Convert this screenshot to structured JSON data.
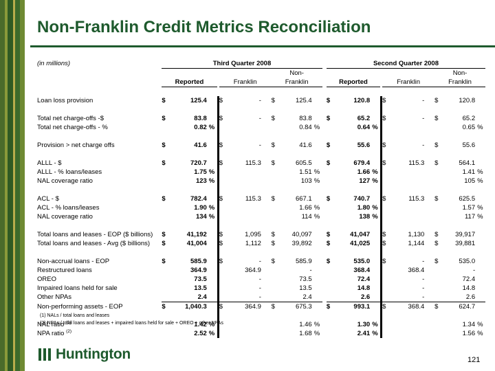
{
  "title": "Non-Franklin Credit Metrics Reconciliation",
  "units_note": "(in millions)",
  "periods": [
    "Third Quarter 2008",
    "Second Quarter 2008"
  ],
  "subheaders": [
    "Reported",
    "Franklin",
    "Non-\nFranklin"
  ],
  "rows": [
    {
      "label": "Loan loss provision",
      "cells": [
        [
          "$",
          "125.4",
          ""
        ],
        [
          "$",
          "-",
          ""
        ],
        [
          "$",
          "125.4",
          ""
        ],
        [
          "$",
          "120.8",
          ""
        ],
        [
          "$",
          "-",
          ""
        ],
        [
          "$",
          "120.8",
          ""
        ]
      ],
      "gap_before": false
    },
    {
      "label": "Total net charge-offs -$",
      "cells": [
        [
          "$",
          "83.8",
          ""
        ],
        [
          "$",
          "-",
          ""
        ],
        [
          "$",
          "83.8",
          ""
        ],
        [
          "$",
          "65.2",
          ""
        ],
        [
          "$",
          "-",
          ""
        ],
        [
          "$",
          "65.2",
          ""
        ]
      ],
      "gap_before": true
    },
    {
      "label": "Total net charge-offs - %",
      "cells": [
        [
          "",
          "0.82",
          "%"
        ],
        [
          "",
          "",
          ""
        ],
        [
          "",
          "0.84",
          "%"
        ],
        [
          "",
          "0.64",
          "%"
        ],
        [
          "",
          "",
          ""
        ],
        [
          "",
          "0.65",
          "%"
        ]
      ],
      "gap_before": false
    },
    {
      "label": "Provision > net charge offs",
      "cells": [
        [
          "$",
          "41.6",
          ""
        ],
        [
          "$",
          "-",
          ""
        ],
        [
          "$",
          "41.6",
          ""
        ],
        [
          "$",
          "55.6",
          ""
        ],
        [
          "$",
          "-",
          ""
        ],
        [
          "$",
          "55.6",
          ""
        ]
      ],
      "gap_before": true
    },
    {
      "label": "ALLL - $",
      "cells": [
        [
          "$",
          "720.7",
          ""
        ],
        [
          "$",
          "115.3",
          ""
        ],
        [
          "$",
          "605.5",
          ""
        ],
        [
          "$",
          "679.4",
          ""
        ],
        [
          "$",
          "115.3",
          ""
        ],
        [
          "$",
          "564.1",
          ""
        ]
      ],
      "gap_before": true
    },
    {
      "label": "ALLL - % loans/leases",
      "cells": [
        [
          "",
          "1.75",
          "%"
        ],
        [
          "",
          "",
          ""
        ],
        [
          "",
          "1.51",
          "%"
        ],
        [
          "",
          "1.66",
          "%"
        ],
        [
          "",
          "",
          ""
        ],
        [
          "",
          "1.41",
          "%"
        ]
      ],
      "gap_before": false
    },
    {
      "label": "NAL coverage ratio",
      "cells": [
        [
          "",
          "123",
          "%"
        ],
        [
          "",
          "",
          ""
        ],
        [
          "",
          "103",
          "%"
        ],
        [
          "",
          "127",
          "%"
        ],
        [
          "",
          "",
          ""
        ],
        [
          "",
          "105",
          "%"
        ]
      ],
      "gap_before": false
    },
    {
      "label": "ACL - $",
      "cells": [
        [
          "$",
          "782.4",
          ""
        ],
        [
          "$",
          "115.3",
          ""
        ],
        [
          "$",
          "667.1",
          ""
        ],
        [
          "$",
          "740.7",
          ""
        ],
        [
          "$",
          "115.3",
          ""
        ],
        [
          "$",
          "625.5",
          ""
        ]
      ],
      "gap_before": true
    },
    {
      "label": "ACL - % loans/leases",
      "cells": [
        [
          "",
          "1.90",
          "%"
        ],
        [
          "",
          "",
          ""
        ],
        [
          "",
          "1.66",
          "%"
        ],
        [
          "",
          "1.80",
          "%"
        ],
        [
          "",
          "",
          ""
        ],
        [
          "",
          "1.57",
          "%"
        ]
      ],
      "gap_before": false
    },
    {
      "label": "NAL coverage ratio",
      "cells": [
        [
          "",
          "134",
          "%"
        ],
        [
          "",
          "",
          ""
        ],
        [
          "",
          "114",
          "%"
        ],
        [
          "",
          "138",
          "%"
        ],
        [
          "",
          "",
          ""
        ],
        [
          "",
          "117",
          "%"
        ]
      ],
      "gap_before": false
    },
    {
      "label": "Total loans and leases - EOP ($ billions)",
      "cells": [
        [
          "$",
          "41,192",
          ""
        ],
        [
          "$",
          "1,095",
          ""
        ],
        [
          "$",
          "40,097",
          ""
        ],
        [
          "$",
          "41,047",
          ""
        ],
        [
          "$",
          "1,130",
          ""
        ],
        [
          "$",
          "39,917",
          ""
        ]
      ],
      "gap_before": true
    },
    {
      "label": "Total loans and leases - Avg ($ billions)",
      "cells": [
        [
          "$",
          "41,004",
          ""
        ],
        [
          "$",
          "1,112",
          ""
        ],
        [
          "$",
          "39,892",
          ""
        ],
        [
          "$",
          "41,025",
          ""
        ],
        [
          "$",
          "1,144",
          ""
        ],
        [
          "$",
          "39,881",
          ""
        ]
      ],
      "gap_before": false
    },
    {
      "label": "Non-accrual loans - EOP",
      "cells": [
        [
          "$",
          "585.9",
          ""
        ],
        [
          "$",
          "-",
          ""
        ],
        [
          "$",
          "585.9",
          ""
        ],
        [
          "$",
          "535.0",
          ""
        ],
        [
          "$",
          "-",
          ""
        ],
        [
          "$",
          "535.0",
          ""
        ]
      ],
      "gap_before": true
    },
    {
      "label": "Restructured loans",
      "cells": [
        [
          "",
          "364.9",
          ""
        ],
        [
          "",
          "364.9",
          ""
        ],
        [
          "",
          "-",
          ""
        ],
        [
          "",
          "368.4",
          ""
        ],
        [
          "",
          "368.4",
          ""
        ],
        [
          "",
          "-",
          ""
        ]
      ],
      "gap_before": false
    },
    {
      "label": "OREO",
      "cells": [
        [
          "",
          "73.5",
          ""
        ],
        [
          "",
          "-",
          ""
        ],
        [
          "",
          "73.5",
          ""
        ],
        [
          "",
          "72.4",
          ""
        ],
        [
          "",
          "-",
          ""
        ],
        [
          "",
          "72.4",
          ""
        ]
      ],
      "gap_before": false
    },
    {
      "label": "Impaired loans held for sale",
      "cells": [
        [
          "",
          "13.5",
          ""
        ],
        [
          "",
          "-",
          ""
        ],
        [
          "",
          "13.5",
          ""
        ],
        [
          "",
          "14.8",
          ""
        ],
        [
          "",
          "-",
          ""
        ],
        [
          "",
          "14.8",
          ""
        ]
      ],
      "gap_before": false
    },
    {
      "label": "Other NPAs",
      "cells": [
        [
          "",
          "2.4",
          ""
        ],
        [
          "",
          "-",
          ""
        ],
        [
          "",
          "2.4",
          ""
        ],
        [
          "",
          "2.6",
          ""
        ],
        [
          "",
          "-",
          ""
        ],
        [
          "",
          "2.6",
          ""
        ]
      ],
      "gap_before": false
    },
    {
      "label": "Non-performing assets - EOP",
      "cells": [
        [
          "$",
          "1,040.3",
          ""
        ],
        [
          "$",
          "364.9",
          ""
        ],
        [
          "$",
          "675.3",
          ""
        ],
        [
          "$",
          "993.1",
          ""
        ],
        [
          "$",
          "368.4",
          ""
        ],
        [
          "$",
          "624.7",
          ""
        ]
      ],
      "gap_before": false,
      "sum": true
    },
    {
      "label": "NAL ratio",
      "sup": "(1)",
      "cells": [
        [
          "",
          "1.42",
          "%"
        ],
        [
          "",
          "",
          ""
        ],
        [
          "",
          "1.46",
          "%"
        ],
        [
          "",
          "1.30",
          "%"
        ],
        [
          "",
          "",
          ""
        ],
        [
          "",
          "1.34",
          "%"
        ]
      ],
      "gap_before": true
    },
    {
      "label": "NPA ratio",
      "sup": "(2)",
      "cells": [
        [
          "",
          "2.52",
          "%"
        ],
        [
          "",
          "",
          ""
        ],
        [
          "",
          "1.68",
          "%"
        ],
        [
          "",
          "2.41",
          "%"
        ],
        [
          "",
          "",
          ""
        ],
        [
          "",
          "1.56",
          "%"
        ]
      ],
      "gap_before": false
    }
  ],
  "footnotes": [
    "(1) NALs / total loans and leases",
    "(2) NPAs / total loans and leases + impaired loans held for sale + OREO + other NPAs"
  ],
  "logo_text": "Huntington",
  "page_number": "121",
  "colors": {
    "brand_green": "#1e5a2d",
    "band_colors": [
      "#4a6b2a",
      "#8a9a3a",
      "#2f5a23",
      "#b7ad4c",
      "#3c6a2b",
      "#6f8a33"
    ]
  }
}
